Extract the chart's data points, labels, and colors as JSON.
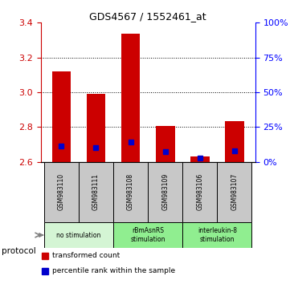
{
  "title": "GDS4567 / 1552461_at",
  "samples": [
    "GSM983110",
    "GSM983111",
    "GSM983108",
    "GSM983109",
    "GSM983106",
    "GSM983107"
  ],
  "red_bar_tops": [
    3.12,
    2.99,
    3.335,
    2.805,
    2.63,
    2.835
  ],
  "blue_values": [
    2.69,
    2.68,
    2.715,
    2.66,
    2.62,
    2.665
  ],
  "bar_bottom": 2.6,
  "ylim": [
    2.6,
    3.4
  ],
  "yticks_left": [
    2.6,
    2.8,
    3.0,
    3.2,
    3.4
  ],
  "yticks_right": [
    0,
    25,
    50,
    75,
    100
  ],
  "grid_yticks": [
    2.8,
    3.0,
    3.2
  ],
  "groups": [
    {
      "label": "no stimulation",
      "start": 0,
      "end": 2,
      "color": "#d4f5d4"
    },
    {
      "label": "rBmAsnRS\nstimulation",
      "start": 2,
      "end": 4,
      "color": "#90ee90"
    },
    {
      "label": "interleukin-8\nstimulation",
      "start": 4,
      "end": 6,
      "color": "#90ee90"
    }
  ],
  "protocol_label": "protocol",
  "red_color": "#cc0000",
  "blue_color": "#0000cc",
  "bar_width": 0.55,
  "sample_box_color": "#c8c8c8",
  "legend_red_label": "transformed count",
  "legend_blue_label": "percentile rank within the sample"
}
